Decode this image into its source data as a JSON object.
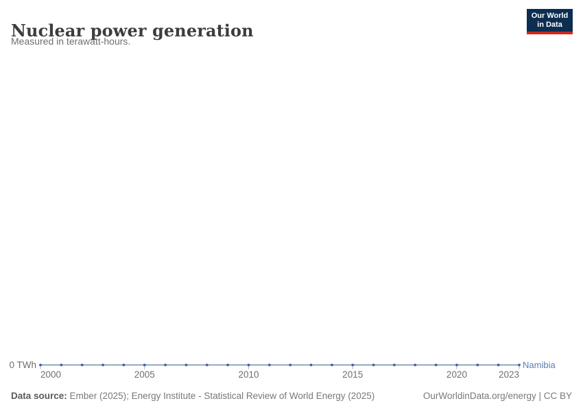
{
  "header": {
    "title": "Nuclear power generation",
    "subtitle": "Measured in terawatt-hours.",
    "logo": {
      "line1": "Our World",
      "line2": "in Data"
    }
  },
  "chart_data": {
    "type": "line",
    "title": "Nuclear power generation",
    "ylabel": "terawatt-hours",
    "x": [
      2000,
      2001,
      2002,
      2003,
      2004,
      2005,
      2006,
      2007,
      2008,
      2009,
      2010,
      2011,
      2012,
      2013,
      2014,
      2015,
      2016,
      2017,
      2018,
      2019,
      2020,
      2021,
      2022,
      2023
    ],
    "series": [
      {
        "name": "Namibia",
        "values": [
          0,
          0,
          0,
          0,
          0,
          0,
          0,
          0,
          0,
          0,
          0,
          0,
          0,
          0,
          0,
          0,
          0,
          0,
          0,
          0,
          0,
          0,
          0,
          0
        ]
      }
    ],
    "x_ticks": [
      "2000",
      "2005",
      "2010",
      "2015",
      "2020",
      "2023"
    ],
    "y_tick_label": "0 TWh",
    "xlim": [
      2000,
      2023
    ],
    "grid": "off",
    "legend_position": "end-of-line"
  },
  "colors": {
    "line": "#7089b4",
    "marker": "#3d62a5",
    "entity_label": "#5b7db1",
    "tick": "#a3b1c7",
    "logo_bg": "#0d2d51",
    "logo_accent": "#d2271e"
  },
  "footer": {
    "datasource_label": "Data source:",
    "datasource_value": "Ember (2025); Energy Institute - Statistical Review of World Energy (2025)",
    "credit": "OurWorldinData.org/energy | CC BY"
  }
}
